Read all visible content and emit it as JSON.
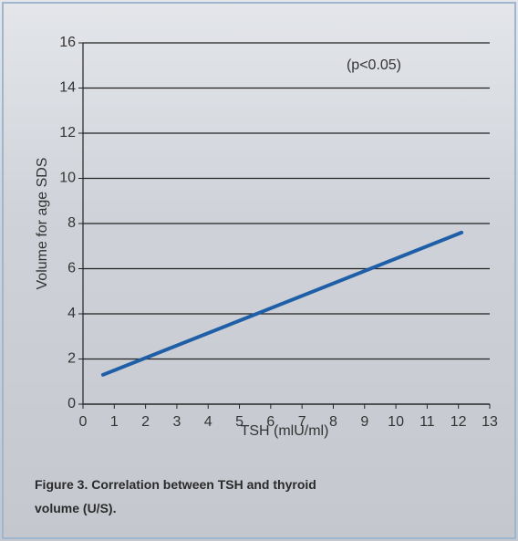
{
  "chart_data": {
    "type": "line",
    "caption": "Figure 3. Correlation between TSH and thyroid volume (U/S).",
    "annotation": "(p<0.05)",
    "x_label": "TSH (mlU/ml)",
    "y_label": "Volume for age SDS",
    "x": [
      0.64,
      12.1
    ],
    "values": [
      1.3,
      7.6
    ],
    "color": "#1f5fa8",
    "xlim": [
      0,
      13
    ],
    "xticks": [
      0,
      1,
      2,
      3,
      4,
      5,
      6,
      7,
      8,
      9,
      10,
      11,
      12,
      13
    ],
    "ylim": [
      0,
      16
    ],
    "yticks": [
      0,
      2,
      4,
      6,
      8,
      10,
      12,
      14,
      16
    ],
    "grid": true
  }
}
